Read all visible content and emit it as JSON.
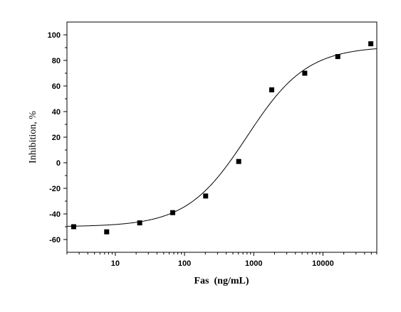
{
  "chart_data": {
    "type": "scatter",
    "xlabel": "Fas  (ng/mL)",
    "ylabel": "Inhibition, %",
    "x_scale": "log",
    "xlim": [
      2,
      60000
    ],
    "ylim": [
      -70,
      110
    ],
    "x_ticks": [
      10,
      100,
      1000,
      10000
    ],
    "x_tick_labels": [
      "10",
      "100",
      "1000",
      "10000"
    ],
    "y_ticks": [
      -60,
      -40,
      -20,
      0,
      20,
      40,
      60,
      80,
      100
    ],
    "y_tick_labels": [
      "-60",
      "-40",
      "-20",
      "0",
      "20",
      "40",
      "60",
      "80",
      "100"
    ],
    "grid": false,
    "series": [
      {
        "marker": "square",
        "color": "#000000",
        "x": [
          2.5,
          7.5,
          22.5,
          67.5,
          202,
          607,
          1820,
          5460,
          16400,
          49200
        ],
        "y": [
          -50,
          -54,
          -47,
          -39,
          -26,
          1,
          57,
          70,
          83,
          93
        ]
      }
    ],
    "fit_curve": {
      "type": "sigmoid-logistic",
      "color": "#000000",
      "bottom": -50,
      "top": 91,
      "ec50": 800,
      "hill": 1.0
    }
  }
}
